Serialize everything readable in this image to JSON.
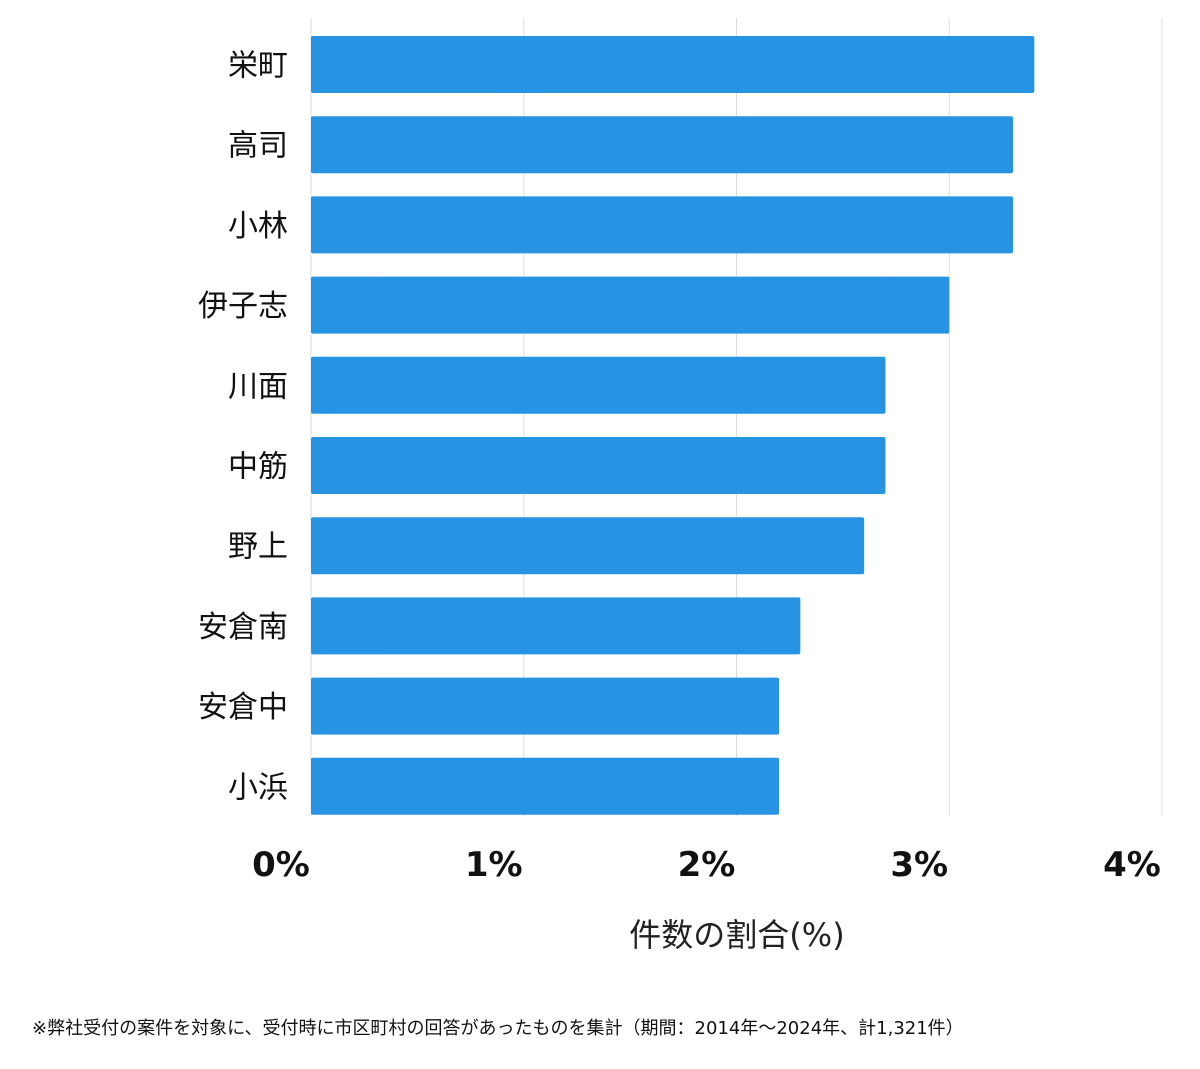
{
  "chart_data": {
    "type": "bar",
    "orientation": "horizontal",
    "categories": [
      "栄町",
      "高司",
      "小林",
      "伊子志",
      "川面",
      "中筋",
      "野上",
      "安倉南",
      "安倉中",
      "小浜"
    ],
    "values": [
      3.4,
      3.3,
      3.3,
      3.0,
      2.7,
      2.7,
      2.6,
      2.3,
      2.2,
      2.2
    ],
    "xlim": [
      0,
      4
    ],
    "xticks": [
      "0%",
      "1%",
      "2%",
      "3%",
      "4%"
    ],
    "xlabel": "件数の割合(%)",
    "grid": true,
    "bar_color": "#2794e3",
    "grid_color": "#dddddd"
  },
  "footnote": "※弊社受付の案件を対象に、受付時に市区町村の回答があったものを集計（期間：2014年～2024年、計1,321件）"
}
